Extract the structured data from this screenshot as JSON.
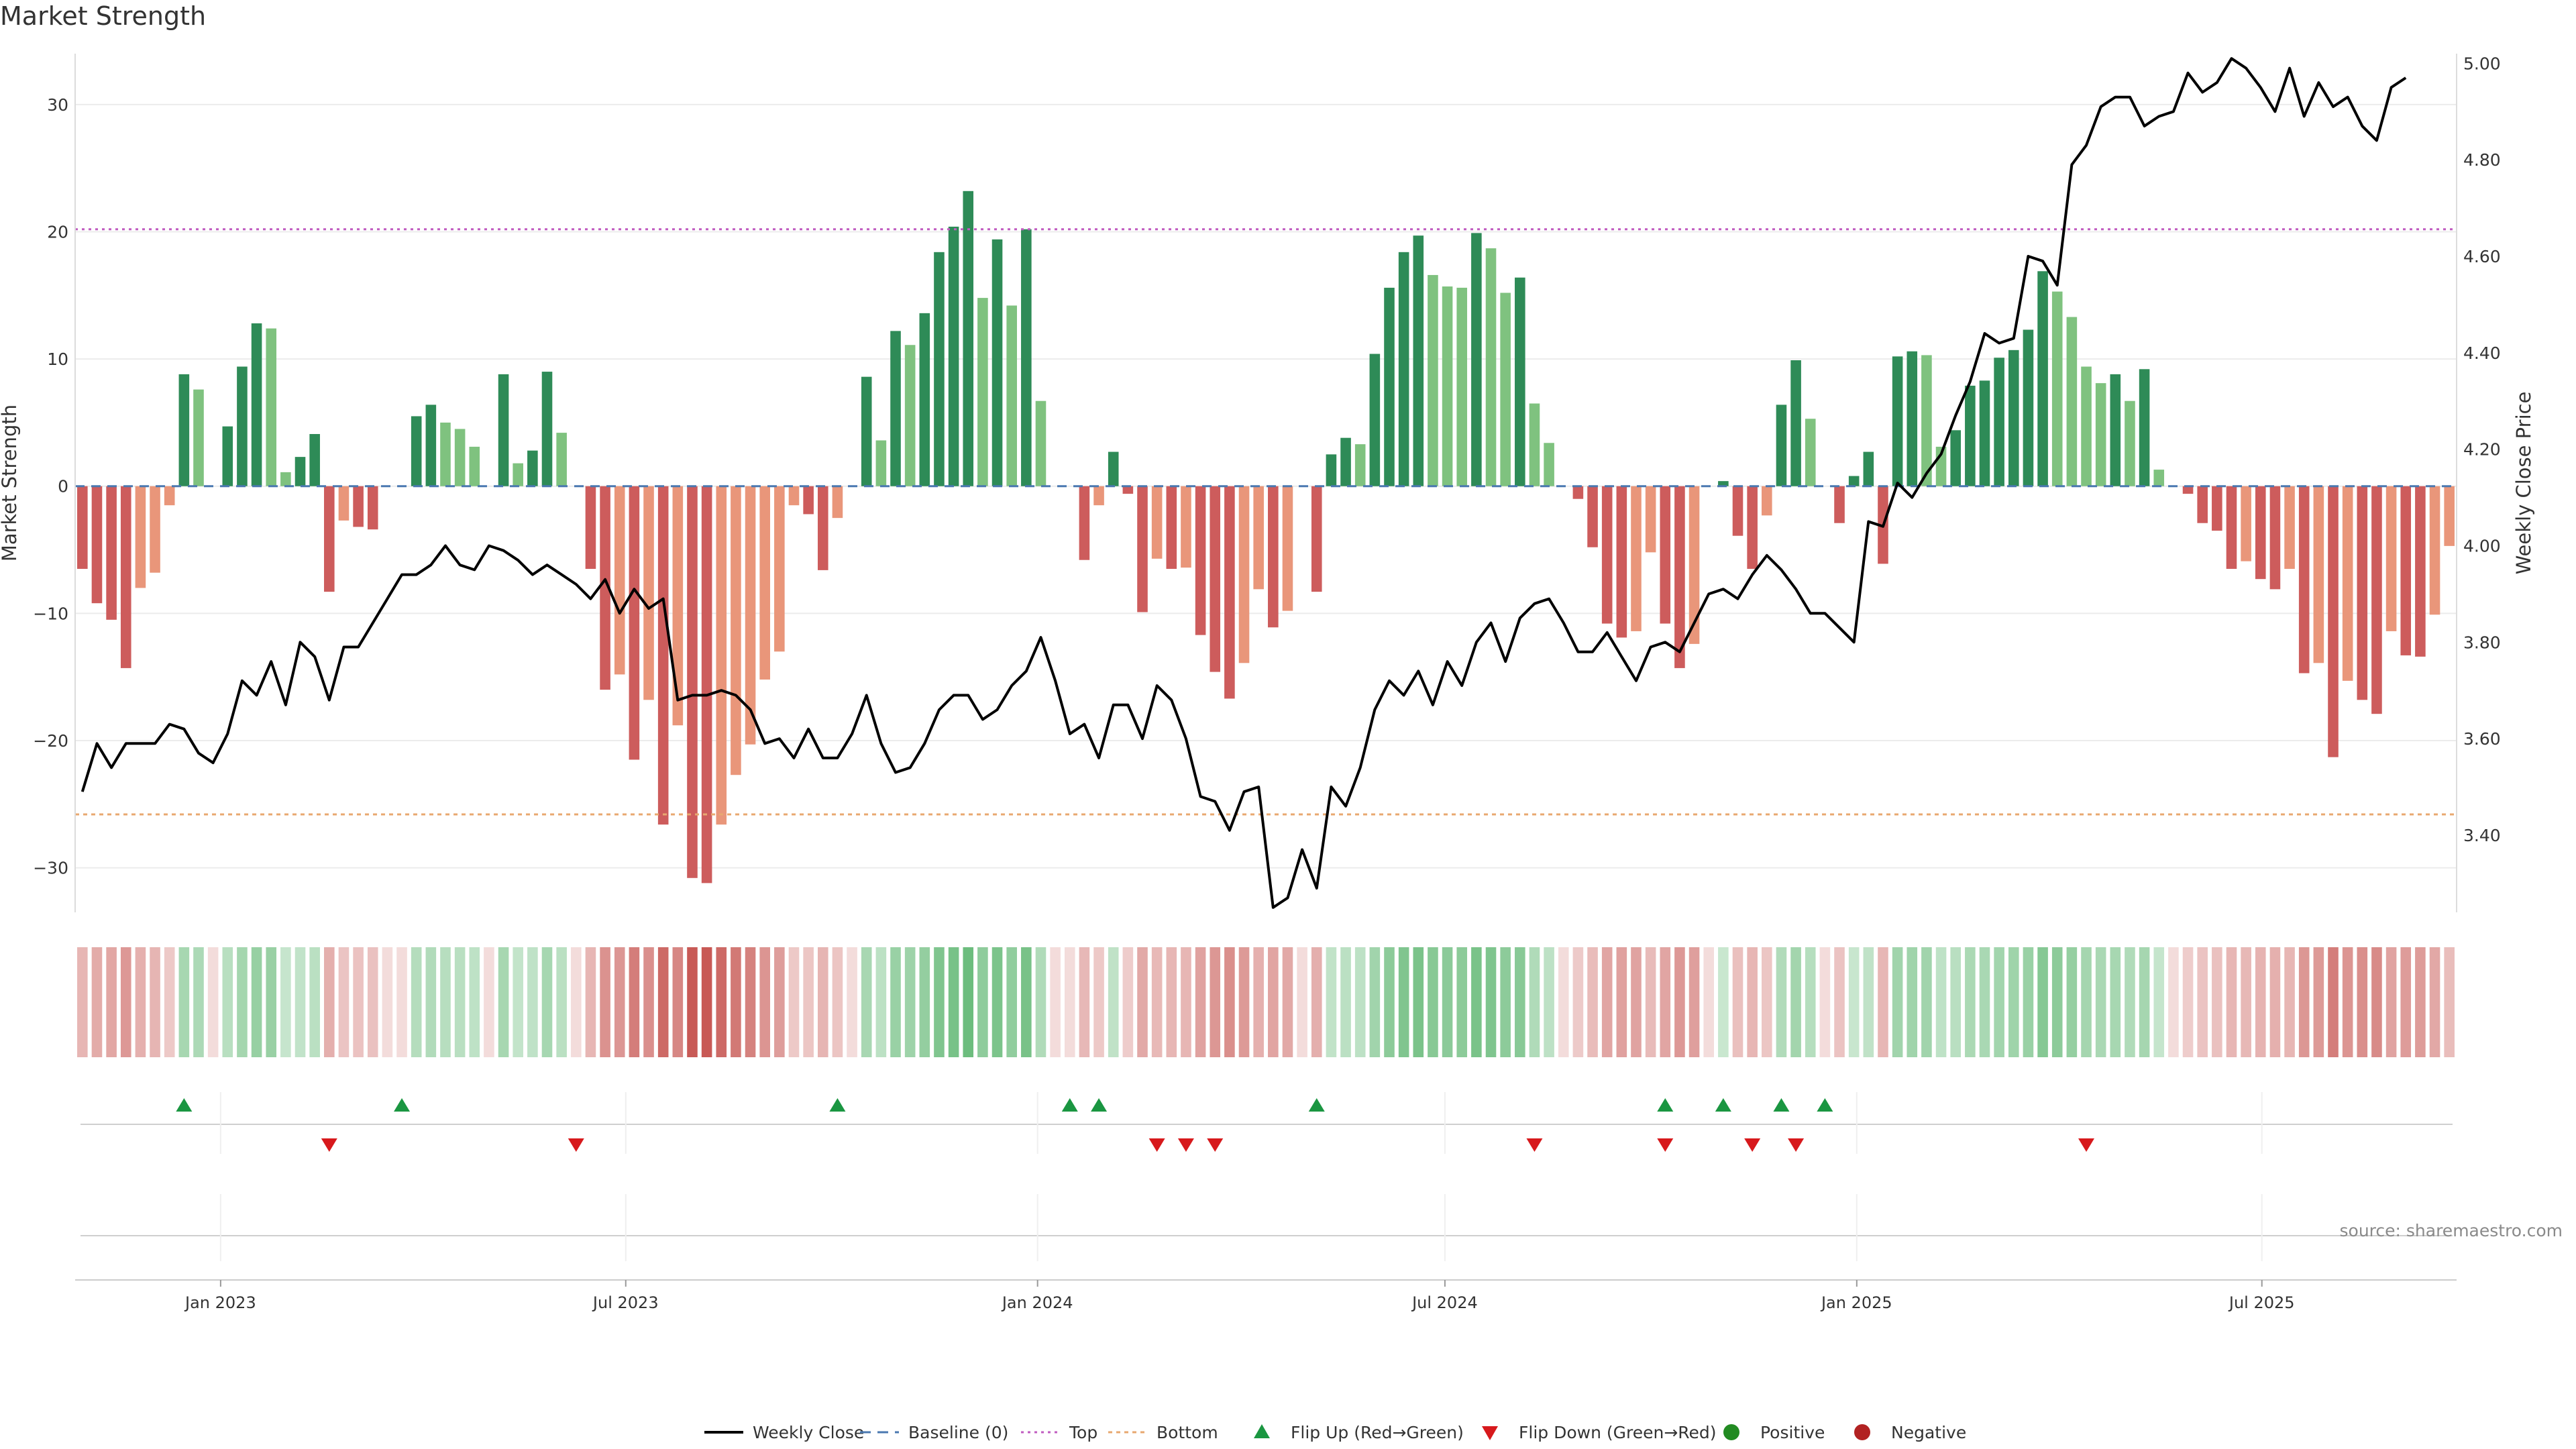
{
  "title": "Market Strength",
  "source": "source: sharemaestro.com",
  "colors": {
    "up_strong": "#2e8b57",
    "up_weak": "#7fc27f",
    "down_strong": "#cd5c5c",
    "down_weak": "#e9967a",
    "line": "#000000",
    "top_line": "#c05cc0",
    "bottom_line": "#e8a870",
    "baseline": "#4a78b0",
    "flip_up": "#1a9641",
    "flip_down": "#d7191c",
    "positive": "#228b22",
    "negative": "#b22222"
  },
  "chart_data": {
    "type": "bar+line",
    "title": "Market Strength",
    "ylabel_left": "Market Strength",
    "ylabel_right": "Weekly Close Price",
    "ylim_left": [
      -33.5,
      34
    ],
    "ylim_right": [
      3.24,
      5.02
    ],
    "left_ticks": [
      -30,
      -20,
      -10,
      0,
      10,
      20,
      30
    ],
    "left_tick_labels": [
      "−30",
      "−20",
      "−10",
      "0",
      "10",
      "20",
      "30"
    ],
    "right_ticks": [
      3.4,
      3.6,
      3.8,
      4.0,
      4.2,
      4.4,
      4.6,
      4.8,
      5.0
    ],
    "right_tick_labels": [
      "3.40",
      "3.60",
      "3.80",
      "4.00",
      "4.20",
      "4.40",
      "4.60",
      "4.80",
      "5.00"
    ],
    "top_level": 20.2,
    "bottom_level": -25.8,
    "x_start": "2022-10-28",
    "x_end": "2025-09-26",
    "x_tick_dates": [
      "2023-01-01",
      "2023-07-01",
      "2024-01-01",
      "2024-07-01",
      "2025-01-01",
      "2025-07-01"
    ],
    "x_tick_labels": [
      "Jan 2023",
      "Jul 2023",
      "Jan 2024",
      "Jul 2024",
      "Jan 2025",
      "Jul 2025"
    ],
    "strength": [
      -6.5,
      -9.2,
      -10.5,
      -14.3,
      -8,
      -6.8,
      -1.5,
      8.8,
      7.6,
      0,
      4.7,
      9.4,
      12.8,
      12.4,
      1.1,
      2.3,
      4.1,
      -8.3,
      -2.7,
      -3.2,
      -3.4,
      0,
      0,
      5.5,
      6.4,
      5,
      4.5,
      3.1,
      0,
      8.8,
      1.8,
      2.8,
      9,
      4.2,
      0,
      -6.5,
      -16,
      -14.8,
      -21.5,
      -16.8,
      -26.6,
      -18.8,
      -30.8,
      -31.2,
      -26.6,
      -22.7,
      -20.3,
      -15.2,
      -13,
      -1.5,
      -2.2,
      -6.6,
      -2.5,
      0,
      8.6,
      3.6,
      12.2,
      11.1,
      13.6,
      18.4,
      20.4,
      23.2,
      14.8,
      19.4,
      14.2,
      20.2,
      6.7,
      0,
      0,
      -5.8,
      -1.5,
      2.7,
      -0.6,
      -9.9,
      -5.7,
      -6.5,
      -6.4,
      -11.7,
      -14.6,
      -16.7,
      -13.9,
      -8.1,
      -11.1,
      -9.8,
      0,
      -8.3,
      2.5,
      3.8,
      3.3,
      10.4,
      15.6,
      18.4,
      19.7,
      16.6,
      15.7,
      15.6,
      19.9,
      18.7,
      15.2,
      16.4,
      6.5,
      3.4,
      0,
      -1,
      -4.8,
      -10.8,
      -11.9,
      -11.4,
      -5.2,
      -10.8,
      -14.3,
      -12.4,
      0,
      0.4,
      -3.9,
      -6.5,
      -2.3,
      6.4,
      9.9,
      5.3,
      0,
      -2.9,
      0.8,
      2.7,
      -6.1,
      10.2,
      10.6,
      10.3,
      3.1,
      4.4,
      7.9,
      8.3,
      10.1,
      10.7,
      12.3,
      16.9,
      15.3,
      13.3,
      9.4,
      8.1,
      8.8,
      6.7,
      9.2,
      1.3,
      0,
      -0.6,
      -2.9,
      -3.5,
      -6.5,
      -5.9,
      -7.3,
      -8.1,
      -6.5,
      -14.7,
      -13.9,
      -21.3,
      -15.3,
      -16.8,
      -17.9,
      -11.4,
      -13.3,
      -13.4,
      -10.1,
      -4.7
    ],
    "close": [
      3.49,
      3.59,
      3.54,
      3.59,
      3.59,
      3.59,
      3.63,
      3.62,
      3.57,
      3.55,
      3.61,
      3.72,
      3.69,
      3.76,
      3.67,
      3.8,
      3.77,
      3.68,
      3.79,
      3.79,
      3.84,
      3.89,
      3.94,
      3.94,
      3.96,
      4.0,
      3.96,
      3.95,
      4.0,
      3.99,
      3.97,
      3.94,
      3.96,
      3.94,
      3.92,
      3.89,
      3.93,
      3.86,
      3.91,
      3.87,
      3.89,
      3.68,
      3.69,
      3.69,
      3.7,
      3.69,
      3.66,
      3.59,
      3.6,
      3.56,
      3.62,
      3.56,
      3.56,
      3.61,
      3.69,
      3.59,
      3.53,
      3.54,
      3.59,
      3.66,
      3.69,
      3.69,
      3.64,
      3.66,
      3.71,
      3.74,
      3.81,
      3.72,
      3.61,
      3.63,
      3.56,
      3.67,
      3.67,
      3.6,
      3.71,
      3.68,
      3.6,
      3.48,
      3.47,
      3.41,
      3.49,
      3.5,
      3.25,
      3.27,
      3.37,
      3.29,
      3.5,
      3.46,
      3.54,
      3.66,
      3.72,
      3.69,
      3.74,
      3.67,
      3.76,
      3.71,
      3.8,
      3.84,
      3.76,
      3.85,
      3.88,
      3.89,
      3.84,
      3.78,
      3.78,
      3.82,
      3.77,
      3.72,
      3.79,
      3.8,
      3.78,
      3.84,
      3.9,
      3.91,
      3.89,
      3.94,
      3.98,
      3.95,
      3.91,
      3.86,
      3.86,
      3.83,
      3.8,
      4.05,
      4.04,
      4.13,
      4.1,
      4.15,
      4.19,
      4.27,
      4.34,
      4.44,
      4.42,
      4.43,
      4.6,
      4.59,
      4.54,
      4.79,
      4.83,
      4.91,
      4.93,
      4.93,
      4.87,
      4.89,
      4.9,
      4.98,
      4.94,
      4.96,
      5.01,
      4.99,
      4.95,
      4.9,
      4.99,
      4.89,
      4.96,
      4.91,
      4.93,
      4.87,
      4.84,
      4.95,
      4.97
    ],
    "flip_up_weeks": [
      7,
      22,
      52,
      68,
      70,
      85,
      109,
      113,
      117,
      120
    ],
    "flip_down_weeks": [
      17,
      34,
      74,
      76,
      78,
      100,
      109,
      115,
      118,
      138
    ],
    "legend": [
      "Weekly Close",
      "Baseline (0)",
      "Top",
      "Bottom",
      "Flip Up (Red→Green)",
      "Flip Down (Green→Red)",
      "Positive",
      "Negative"
    ]
  }
}
